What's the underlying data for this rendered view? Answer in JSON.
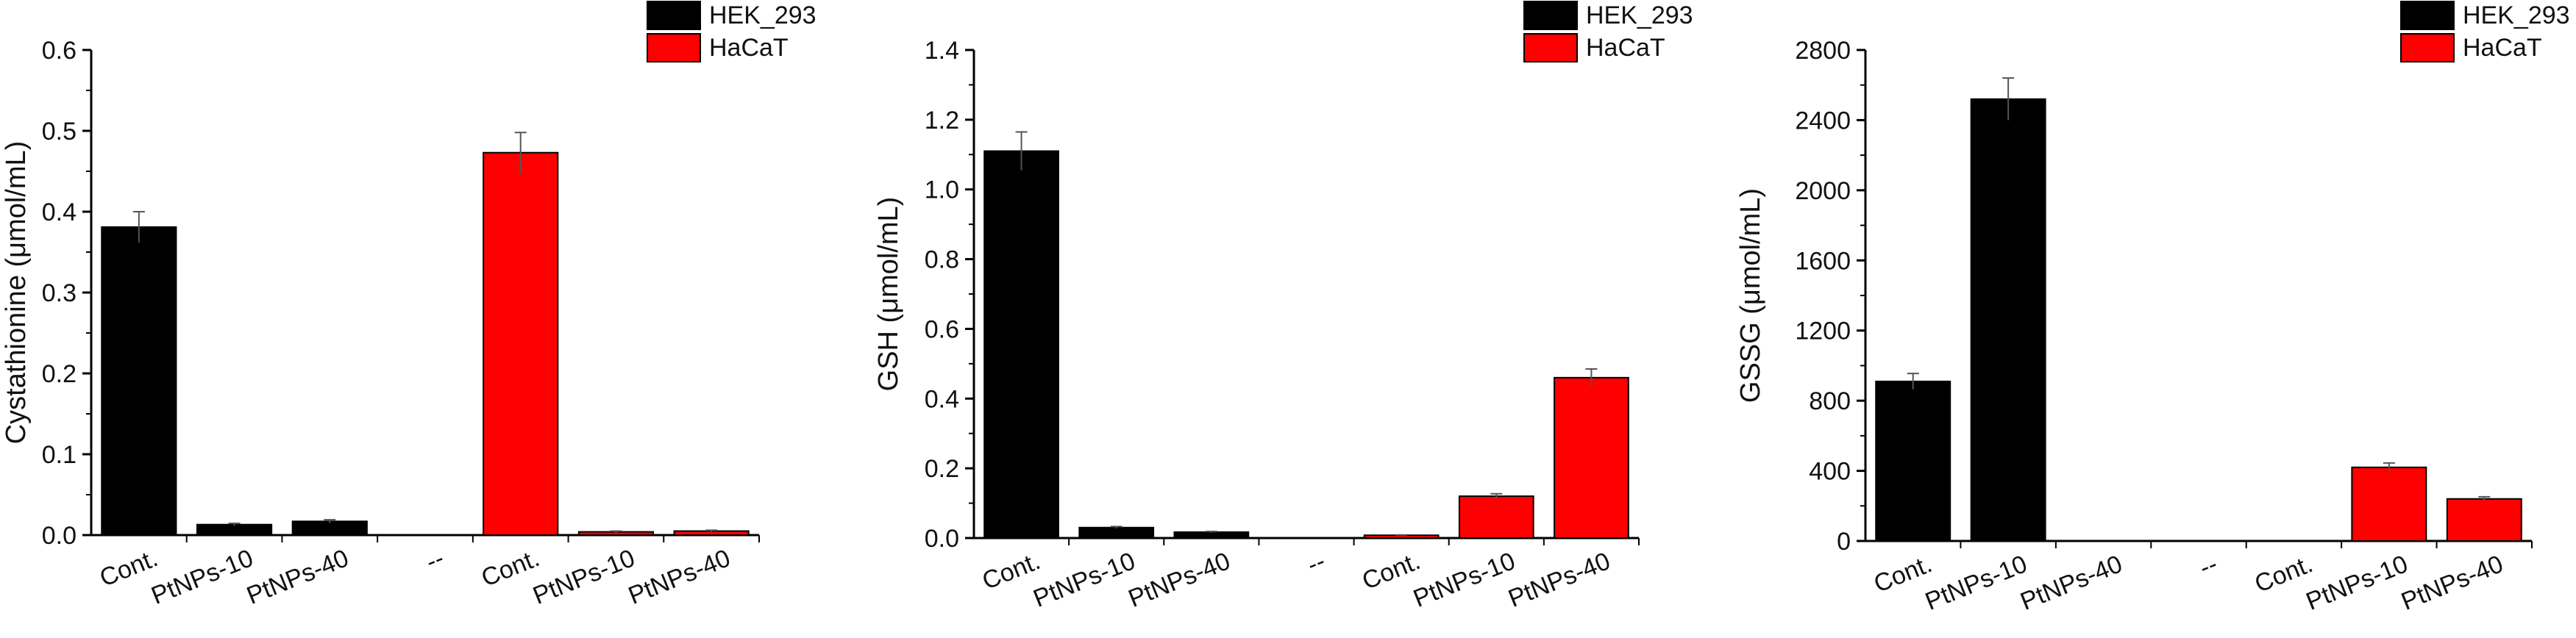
{
  "colors": {
    "HEK_293": "#000000",
    "HaCaT": "#ff0000"
  },
  "legend": [
    {
      "name": "HEK_293",
      "color": "#000000"
    },
    {
      "name": "HaCaT",
      "color": "#ff0000"
    }
  ],
  "chart_data": [
    {
      "type": "bar",
      "ylabel": "Cystathionine (μmol/mL)",
      "ylim": [
        0,
        0.6
      ],
      "yticks": [
        "0.0",
        "0.1",
        "0.2",
        "0.3",
        "0.4",
        "0.5",
        "0.6"
      ],
      "categories": [
        "Cont.",
        "PtNPs-10",
        "PtNPs-40",
        "--",
        "Cont.",
        "PtNPs-10",
        "PtNPs-40"
      ],
      "values": [
        0.381,
        0.013,
        0.017,
        0,
        0.473,
        0.004,
        0.005
      ],
      "errors": [
        0.019,
        0.0015,
        0.002,
        0,
        0.025,
        0.001,
        0.001
      ],
      "series": [
        "HEK_293",
        "HEK_293",
        "HEK_293",
        "none",
        "HaCaT",
        "HaCaT",
        "HaCaT"
      ],
      "legend_position": "top-right",
      "grid": false
    },
    {
      "type": "bar",
      "ylabel": "GSH (μmol/mL)",
      "ylim": [
        0,
        1.4
      ],
      "yticks": [
        "0.0",
        "0.2",
        "0.4",
        "0.6",
        "0.8",
        "1.0",
        "1.2",
        "1.4"
      ],
      "categories": [
        "Cont.",
        "PtNPs-10",
        "PtNPs-40",
        "--",
        "Cont.",
        "PtNPs-10",
        "PtNPs-40"
      ],
      "values": [
        1.11,
        0.03,
        0.017,
        0,
        0.008,
        0.12,
        0.46
      ],
      "errors": [
        0.055,
        0.003,
        0.002,
        0,
        0.001,
        0.007,
        0.025
      ],
      "series": [
        "HEK_293",
        "HEK_293",
        "HEK_293",
        "none",
        "HaCaT",
        "HaCaT",
        "HaCaT"
      ],
      "legend_position": "top-right",
      "grid": false
    },
    {
      "type": "bar",
      "ylabel": "GSSG (μmol/mL)",
      "ylim": [
        0,
        2800
      ],
      "yticks": [
        "0",
        "400",
        "800",
        "1200",
        "1600",
        "2000",
        "2400",
        "2800"
      ],
      "categories": [
        "Cont.",
        "PtNPs-10",
        "PtNPs-40",
        "--",
        "Cont.",
        "PtNPs-10",
        "PtNPs-40"
      ],
      "values": [
        910,
        2520,
        0,
        0,
        0,
        420,
        240
      ],
      "errors": [
        45,
        120,
        0,
        0,
        0,
        25,
        12
      ],
      "series": [
        "HEK_293",
        "HEK_293",
        "HEK_293",
        "none",
        "HaCaT",
        "HaCaT",
        "HaCaT"
      ],
      "legend_position": "top-right",
      "grid": false
    }
  ]
}
